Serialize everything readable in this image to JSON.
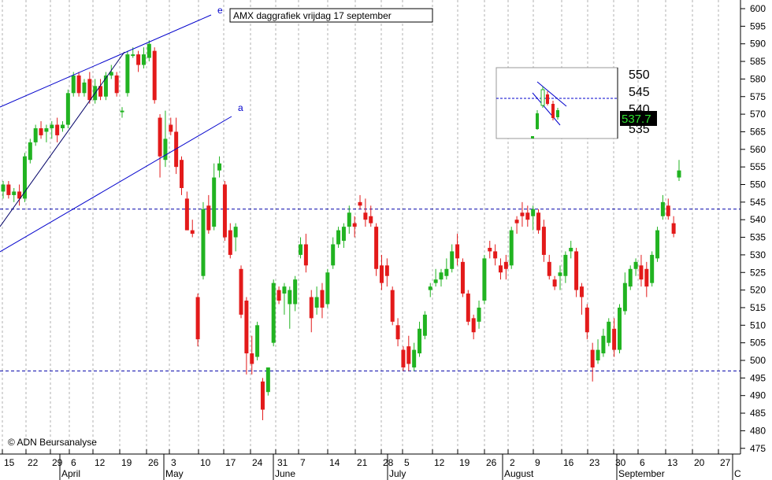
{
  "chart_data": {
    "type": "candlestick",
    "title": "AMX daggrafiek vrijdag 17 september",
    "copyright": "© ADN Beursanalyse",
    "y_axis": {
      "min": 470,
      "max": 600,
      "ticks": [
        475,
        480,
        485,
        490,
        495,
        500,
        505,
        510,
        515,
        520,
        525,
        530,
        535,
        540,
        545,
        550,
        555,
        560,
        565,
        570,
        575,
        580,
        585,
        590,
        595,
        600
      ]
    },
    "x_axis": {
      "day_ticks": [
        "15",
        "22",
        "29",
        "6",
        "12",
        "19",
        "26",
        "3",
        "10",
        "17",
        "24",
        "31",
        "7",
        "14",
        "21",
        "28",
        "5",
        "12",
        "19",
        "26",
        "2",
        "9",
        "16",
        "23",
        "30",
        "6",
        "13",
        "20",
        "27"
      ],
      "month_labels": [
        "April",
        "May",
        "June",
        "July",
        "August",
        "September",
        "C"
      ]
    },
    "horizontal_levels": [
      543,
      497
    ],
    "trendline_labels": [
      "e",
      "a"
    ],
    "colors": {
      "up": "#21b321",
      "down": "#e31a1a",
      "line": "#0000cc",
      "grid": "#b0b0b0"
    },
    "series": [
      {
        "date": "15",
        "o": 548,
        "h": 551,
        "l": 546,
        "c": 550
      },
      {
        "date": "16",
        "o": 550,
        "h": 551,
        "l": 546,
        "c": 547
      },
      {
        "date": "17",
        "o": 547,
        "h": 549,
        "l": 545,
        "c": 548
      },
      {
        "date": "18",
        "o": 548,
        "h": 550,
        "l": 544,
        "c": 546
      },
      {
        "date": "21",
        "o": 546,
        "h": 559,
        "l": 545,
        "c": 558
      },
      {
        "date": "22",
        "o": 557,
        "h": 563,
        "l": 556,
        "c": 562
      },
      {
        "date": "23",
        "o": 562,
        "h": 567,
        "l": 561,
        "c": 566
      },
      {
        "date": "24",
        "o": 566,
        "h": 568,
        "l": 563,
        "c": 564
      },
      {
        "date": "25",
        "o": 565,
        "h": 567,
        "l": 562,
        "c": 566
      },
      {
        "date": "28",
        "o": 566,
        "h": 568,
        "l": 563,
        "c": 567
      },
      {
        "date": "29",
        "o": 567,
        "h": 569,
        "l": 562,
        "c": 564
      },
      {
        "date": "30",
        "o": 566,
        "h": 568,
        "l": 565,
        "c": 567
      },
      {
        "date": "31",
        "o": 567,
        "h": 577,
        "l": 566,
        "c": 576
      },
      {
        "date": "1",
        "o": 576,
        "h": 582,
        "l": 575,
        "c": 581
      },
      {
        "date": "6",
        "o": 581,
        "h": 582,
        "l": 575,
        "c": 576
      },
      {
        "date": "7",
        "o": 576,
        "h": 580,
        "l": 575,
        "c": 579
      },
      {
        "date": "8",
        "o": 580,
        "h": 582,
        "l": 573,
        "c": 574
      },
      {
        "date": "9",
        "o": 574,
        "h": 580,
        "l": 573,
        "c": 578
      },
      {
        "date": "12",
        "o": 578,
        "h": 580,
        "l": 574,
        "c": 575
      },
      {
        "date": "13",
        "o": 575,
        "h": 582,
        "l": 574,
        "c": 581
      },
      {
        "date": "14",
        "o": 581,
        "h": 584,
        "l": 580,
        "c": 582
      },
      {
        "date": "15",
        "o": 581,
        "h": 582,
        "l": 575,
        "c": 576
      },
      {
        "date": "16",
        "o": 571,
        "h": 572,
        "l": 569,
        "c": 571
      },
      {
        "date": "19",
        "o": 576,
        "h": 588,
        "l": 575,
        "c": 587
      },
      {
        "date": "20",
        "o": 587,
        "h": 589,
        "l": 586,
        "c": 587
      },
      {
        "date": "21",
        "o": 587,
        "h": 588,
        "l": 582,
        "c": 584
      },
      {
        "date": "22",
        "o": 584,
        "h": 589,
        "l": 583,
        "c": 587
      },
      {
        "date": "23",
        "o": 586,
        "h": 591,
        "l": 585,
        "c": 590
      },
      {
        "date": "26",
        "o": 588,
        "h": 589,
        "l": 573,
        "c": 574
      },
      {
        "date": "27",
        "o": 569,
        "h": 570,
        "l": 552,
        "c": 558
      },
      {
        "date": "28",
        "o": 557,
        "h": 571,
        "l": 555,
        "c": 563
      },
      {
        "date": "29",
        "o": 567,
        "h": 569,
        "l": 564,
        "c": 565
      },
      {
        "date": "30",
        "o": 565,
        "h": 569,
        "l": 553,
        "c": 555
      },
      {
        "date": "3",
        "o": 557,
        "h": 558,
        "l": 547,
        "c": 549
      },
      {
        "date": "4",
        "o": 546,
        "h": 548,
        "l": 537,
        "c": 537
      },
      {
        "date": "5",
        "o": 537,
        "h": 540,
        "l": 535,
        "c": 536
      },
      {
        "date": "6",
        "o": 518,
        "h": 519,
        "l": 504,
        "c": 506
      },
      {
        "date": "7",
        "o": 524,
        "h": 545,
        "l": 523,
        "c": 543
      },
      {
        "date": "10",
        "o": 544,
        "h": 547,
        "l": 536,
        "c": 537
      },
      {
        "date": "11",
        "o": 538,
        "h": 556,
        "l": 537,
        "c": 552
      },
      {
        "date": "12",
        "o": 554,
        "h": 558,
        "l": 552,
        "c": 556
      },
      {
        "date": "13",
        "o": 550,
        "h": 551,
        "l": 534,
        "c": 535
      },
      {
        "date": "14",
        "o": 537,
        "h": 539,
        "l": 529,
        "c": 530
      },
      {
        "date": "17",
        "o": 535,
        "h": 539,
        "l": 531,
        "c": 538
      },
      {
        "date": "18",
        "o": 526,
        "h": 527,
        "l": 512,
        "c": 513
      },
      {
        "date": "19",
        "o": 517,
        "h": 518,
        "l": 496,
        "c": 502
      },
      {
        "date": "20",
        "o": 502,
        "h": 507,
        "l": 496,
        "c": 499
      },
      {
        "date": "21",
        "o": 501,
        "h": 511,
        "l": 500,
        "c": 510
      },
      {
        "date": "24",
        "o": 494,
        "h": 495,
        "l": 483,
        "c": 486
      },
      {
        "date": "25",
        "o": 491,
        "h": 498,
        "l": 490,
        "c": 498
      },
      {
        "date": "26",
        "o": 505,
        "h": 523,
        "l": 504,
        "c": 522
      },
      {
        "date": "27",
        "o": 520,
        "h": 521,
        "l": 516,
        "c": 517
      },
      {
        "date": "28",
        "o": 519,
        "h": 522,
        "l": 513,
        "c": 521
      },
      {
        "date": "31",
        "o": 516,
        "h": 521,
        "l": 509,
        "c": 520
      },
      {
        "date": "1",
        "o": 516,
        "h": 524,
        "l": 514,
        "c": 523
      },
      {
        "date": "2",
        "o": 530,
        "h": 535,
        "l": 529,
        "c": 533
      },
      {
        "date": "3",
        "o": 533,
        "h": 536,
        "l": 525,
        "c": 527
      },
      {
        "date": "4",
        "o": 518,
        "h": 520,
        "l": 508,
        "c": 512
      },
      {
        "date": "7",
        "o": 515,
        "h": 521,
        "l": 513,
        "c": 518
      },
      {
        "date": "8",
        "o": 520,
        "h": 522,
        "l": 512,
        "c": 515
      },
      {
        "date": "9",
        "o": 516,
        "h": 526,
        "l": 515,
        "c": 525
      },
      {
        "date": "10",
        "o": 527,
        "h": 535,
        "l": 526,
        "c": 533
      },
      {
        "date": "11",
        "o": 533,
        "h": 538,
        "l": 532,
        "c": 537
      },
      {
        "date": "14",
        "o": 534,
        "h": 539,
        "l": 532,
        "c": 538
      },
      {
        "date": "15",
        "o": 538,
        "h": 544,
        "l": 536,
        "c": 542
      },
      {
        "date": "16",
        "o": 539,
        "h": 541,
        "l": 535,
        "c": 538
      },
      {
        "date": "17",
        "o": 545,
        "h": 547,
        "l": 543,
        "c": 544
      },
      {
        "date": "18",
        "o": 542,
        "h": 546,
        "l": 538,
        "c": 540
      },
      {
        "date": "21",
        "o": 541,
        "h": 544,
        "l": 538,
        "c": 539
      },
      {
        "date": "22",
        "o": 538,
        "h": 539,
        "l": 524,
        "c": 526
      },
      {
        "date": "23",
        "o": 527,
        "h": 530,
        "l": 520,
        "c": 522
      },
      {
        "date": "24",
        "o": 527,
        "h": 529,
        "l": 521,
        "c": 524
      },
      {
        "date": "25",
        "o": 520,
        "h": 521,
        "l": 510,
        "c": 511
      },
      {
        "date": "28",
        "o": 510,
        "h": 512,
        "l": 504,
        "c": 506
      },
      {
        "date": "29",
        "o": 503,
        "h": 504,
        "l": 497,
        "c": 498
      },
      {
        "date": "30",
        "o": 504,
        "h": 507,
        "l": 497,
        "c": 499
      },
      {
        "date": "1",
        "o": 498,
        "h": 505,
        "l": 497,
        "c": 503
      },
      {
        "date": "5",
        "o": 502,
        "h": 511,
        "l": 501,
        "c": 509
      },
      {
        "date": "6",
        "o": 507,
        "h": 514,
        "l": 506,
        "c": 513
      },
      {
        "date": "7",
        "o": 520,
        "h": 522,
        "l": 518,
        "c": 521
      },
      {
        "date": "8",
        "o": 522,
        "h": 526,
        "l": 521,
        "c": 523
      },
      {
        "date": "9",
        "o": 523,
        "h": 526,
        "l": 521,
        "c": 525
      },
      {
        "date": "12",
        "o": 524,
        "h": 529,
        "l": 523,
        "c": 526
      },
      {
        "date": "13",
        "o": 526,
        "h": 533,
        "l": 525,
        "c": 531
      },
      {
        "date": "14",
        "o": 533,
        "h": 536,
        "l": 527,
        "c": 529
      },
      {
        "date": "15",
        "o": 528,
        "h": 529,
        "l": 518,
        "c": 519
      },
      {
        "date": "16",
        "o": 519,
        "h": 520,
        "l": 510,
        "c": 511
      },
      {
        "date": "19",
        "o": 512,
        "h": 513,
        "l": 506,
        "c": 508
      },
      {
        "date": "20",
        "o": 511,
        "h": 517,
        "l": 509,
        "c": 515
      },
      {
        "date": "21",
        "o": 517,
        "h": 530,
        "l": 516,
        "c": 529
      },
      {
        "date": "22",
        "o": 532,
        "h": 534,
        "l": 529,
        "c": 531
      },
      {
        "date": "23",
        "o": 531,
        "h": 533,
        "l": 527,
        "c": 529
      },
      {
        "date": "26",
        "o": 527,
        "h": 529,
        "l": 523,
        "c": 525
      },
      {
        "date": "27",
        "o": 528,
        "h": 530,
        "l": 523,
        "c": 526
      },
      {
        "date": "28",
        "o": 527,
        "h": 538,
        "l": 526,
        "c": 537
      },
      {
        "date": "29",
        "o": 540,
        "h": 541,
        "l": 536,
        "c": 539
      },
      {
        "date": "30",
        "o": 542,
        "h": 545,
        "l": 538,
        "c": 541
      },
      {
        "date": "2",
        "o": 542,
        "h": 544,
        "l": 538,
        "c": 540
      },
      {
        "date": "3",
        "o": 541,
        "h": 544,
        "l": 537,
        "c": 543
      },
      {
        "date": "4",
        "o": 542,
        "h": 543,
        "l": 536,
        "c": 537
      },
      {
        "date": "5",
        "o": 538,
        "h": 540,
        "l": 528,
        "c": 530
      },
      {
        "date": "6",
        "o": 528,
        "h": 530,
        "l": 523,
        "c": 524
      },
      {
        "date": "9",
        "o": 523,
        "h": 524,
        "l": 520,
        "c": 521
      },
      {
        "date": "10",
        "o": 524,
        "h": 527,
        "l": 520,
        "c": 525
      },
      {
        "date": "11",
        "o": 524,
        "h": 531,
        "l": 522,
        "c": 530
      },
      {
        "date": "12",
        "o": 531,
        "h": 534,
        "l": 529,
        "c": 532
      },
      {
        "date": "13",
        "o": 531,
        "h": 532,
        "l": 518,
        "c": 520
      },
      {
        "date": "16",
        "o": 521,
        "h": 522,
        "l": 513,
        "c": 518
      },
      {
        "date": "17",
        "o": 515,
        "h": 516,
        "l": 506,
        "c": 508
      },
      {
        "date": "18",
        "o": 503,
        "h": 505,
        "l": 494,
        "c": 498
      },
      {
        "date": "19",
        "o": 500,
        "h": 506,
        "l": 499,
        "c": 503
      },
      {
        "date": "20",
        "o": 502,
        "h": 509,
        "l": 501,
        "c": 507
      },
      {
        "date": "23",
        "o": 505,
        "h": 512,
        "l": 504,
        "c": 511
      },
      {
        "date": "24",
        "o": 509,
        "h": 512,
        "l": 501,
        "c": 503
      },
      {
        "date": "25",
        "o": 503,
        "h": 516,
        "l": 502,
        "c": 515
      },
      {
        "date": "26",
        "o": 514,
        "h": 525,
        "l": 513,
        "c": 522
      },
      {
        "date": "27",
        "o": 521,
        "h": 527,
        "l": 520,
        "c": 526
      },
      {
        "date": "30",
        "o": 526,
        "h": 529,
        "l": 524,
        "c": 528
      },
      {
        "date": "31",
        "o": 527,
        "h": 530,
        "l": 521,
        "c": 523
      },
      {
        "date": "1",
        "o": 526,
        "h": 528,
        "l": 518,
        "c": 521
      },
      {
        "date": "2",
        "o": 522,
        "h": 531,
        "l": 521,
        "c": 530
      },
      {
        "date": "3",
        "o": 529,
        "h": 538,
        "l": 528,
        "c": 537
      },
      {
        "date": "6",
        "o": 541,
        "h": 547,
        "l": 540,
        "c": 545
      },
      {
        "date": "7",
        "o": 544,
        "h": 546,
        "l": 540,
        "c": 541
      },
      {
        "date": "8",
        "o": 539,
        "h": 541,
        "l": 535,
        "c": 536
      },
      {
        "date": "17",
        "o": 552,
        "h": 557,
        "l": 551,
        "c": 554
      }
    ]
  },
  "inset": {
    "price_labels": [
      "550",
      "545",
      "540",
      "535"
    ],
    "current_value": "537.7"
  }
}
